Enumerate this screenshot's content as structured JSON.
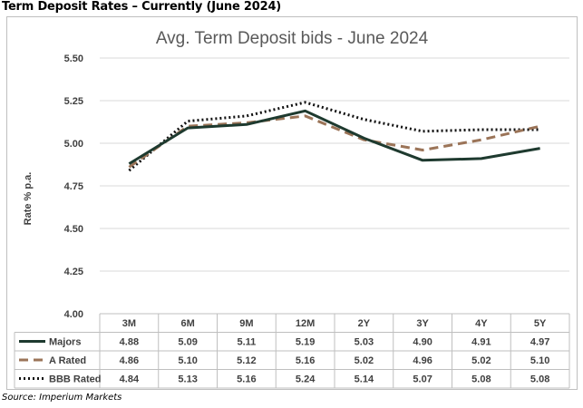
{
  "page": {
    "heading": "Term Deposit Rates – Currently (June 2024)",
    "source": "Source: Imperium Markets"
  },
  "chart_data": {
    "type": "line",
    "title": "Avg. Term Deposit bids - June 2024",
    "xlabel": "",
    "ylabel": "Rate % p.a.",
    "ylim": [
      4.0,
      5.5
    ],
    "yticks": [
      "4.00",
      "4.25",
      "4.50",
      "4.75",
      "5.00",
      "5.25",
      "5.50"
    ],
    "categories": [
      "3M",
      "6M",
      "9M",
      "12M",
      "2Y",
      "3Y",
      "4Y",
      "5Y"
    ],
    "grid": "horizontal",
    "legend": "data-table",
    "series": [
      {
        "name": "Majors",
        "values": [
          4.88,
          5.09,
          5.11,
          5.19,
          5.03,
          4.9,
          4.91,
          4.97
        ],
        "labels": [
          "4.88",
          "5.09",
          "5.11",
          "5.19",
          "5.03",
          "4.90",
          "4.91",
          "4.97"
        ],
        "color": "#1e3a2f",
        "style": "solid"
      },
      {
        "name": "A Rated",
        "values": [
          4.86,
          5.1,
          5.12,
          5.16,
          5.02,
          4.96,
          5.02,
          5.1
        ],
        "labels": [
          "4.86",
          "5.10",
          "5.12",
          "5.16",
          "5.02",
          "4.96",
          "5.02",
          "5.10"
        ],
        "color": "#9b7458",
        "style": "dashed"
      },
      {
        "name": "BBB Rated",
        "values": [
          4.84,
          5.13,
          5.16,
          5.24,
          5.14,
          5.07,
          5.08,
          5.08
        ],
        "labels": [
          "4.84",
          "5.13",
          "5.16",
          "5.24",
          "5.14",
          "5.07",
          "5.08",
          "5.08"
        ],
        "color": "#111111",
        "style": "dotted"
      }
    ]
  }
}
